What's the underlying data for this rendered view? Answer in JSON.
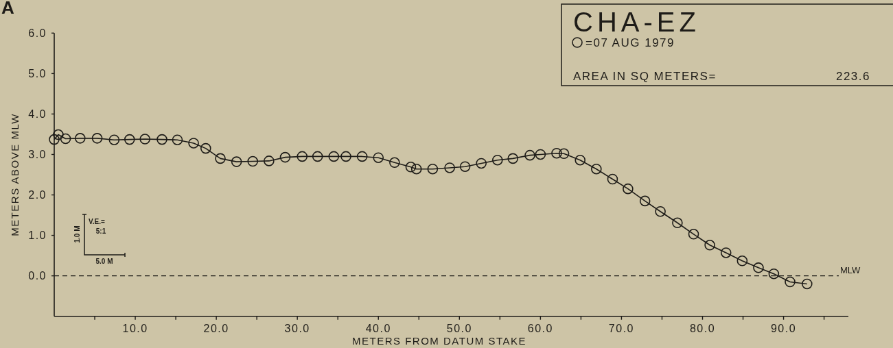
{
  "chart_data": {
    "type": "line",
    "title": "CHA-EZ",
    "xlabel": "METERS FROM DATUM STAKE",
    "ylabel": "METERS ABOVE MLW",
    "xlim": [
      0,
      98
    ],
    "ylim": [
      -1,
      6
    ],
    "xticks": [
      {
        "value": 5,
        "label": null
      },
      {
        "value": 10,
        "label": "10.0"
      },
      {
        "value": 15,
        "label": null
      },
      {
        "value": 20,
        "label": "20.0"
      },
      {
        "value": 25,
        "label": null
      },
      {
        "value": 30,
        "label": "30.0"
      },
      {
        "value": 35,
        "label": null
      },
      {
        "value": 40,
        "label": "40.0"
      },
      {
        "value": 45,
        "label": null
      },
      {
        "value": 50,
        "label": "50.0"
      },
      {
        "value": 55,
        "label": null
      },
      {
        "value": 60,
        "label": "60.0"
      },
      {
        "value": 65,
        "label": null
      },
      {
        "value": 70,
        "label": "70.0"
      },
      {
        "value": 75,
        "label": null
      },
      {
        "value": 80,
        "label": "80.0"
      },
      {
        "value": 85,
        "label": null
      },
      {
        "value": 90,
        "label": "90.0"
      },
      {
        "value": 95,
        "label": null
      }
    ],
    "yticks": [
      {
        "value": 0,
        "label": "0.0"
      },
      {
        "value": 1,
        "label": "1.0"
      },
      {
        "value": 2,
        "label": "2.0"
      },
      {
        "value": 3,
        "label": "3.0"
      },
      {
        "value": 4,
        "label": "4.0"
      },
      {
        "value": 5,
        "label": "5.0"
      },
      {
        "value": 6,
        "label": "6.0"
      }
    ],
    "grid": false,
    "legend": "top right",
    "marker": "circle",
    "line_style": "solid",
    "series": [
      {
        "name": "=07 AUG 1979",
        "color": "#1e1c18",
        "x": [
          0,
          0.5,
          1.4,
          3.2,
          5.3,
          7.4,
          9.3,
          11.2,
          13.3,
          15.2,
          17.2,
          18.7,
          20.5,
          22.5,
          24.5,
          26.5,
          28.5,
          30.6,
          32.5,
          34.5,
          36.0,
          38.0,
          40.0,
          42.0,
          44.0,
          44.7,
          46.7,
          48.8,
          50.7,
          52.7,
          54.7,
          56.6,
          58.7,
          60.0,
          62.0,
          62.9,
          64.9,
          66.9,
          68.9,
          70.8,
          72.9,
          74.8,
          76.9,
          78.9,
          80.9,
          82.9,
          84.9,
          86.9,
          88.8,
          90.8,
          92.9
        ],
        "values": [
          3.37,
          3.49,
          3.39,
          3.4,
          3.4,
          3.36,
          3.37,
          3.38,
          3.37,
          3.36,
          3.28,
          3.15,
          2.9,
          2.82,
          2.83,
          2.84,
          2.93,
          2.95,
          2.95,
          2.95,
          2.95,
          2.95,
          2.92,
          2.8,
          2.69,
          2.64,
          2.64,
          2.67,
          2.7,
          2.78,
          2.86,
          2.9,
          2.98,
          3.0,
          3.03,
          3.02,
          2.86,
          2.64,
          2.39,
          2.15,
          1.85,
          1.59,
          1.31,
          1.03,
          0.76,
          0.57,
          0.37,
          0.2,
          0.05,
          -0.15,
          -0.2
        ]
      }
    ],
    "ref_lines": [
      {
        "axis": "y",
        "value": 0,
        "label": "MLW",
        "line_style": "dashed",
        "color": "#1e1c18"
      }
    ],
    "annotations": [
      "A",
      "AREA IN SQ METERS=",
      "223.6",
      "V.E.=",
      "5:1",
      "1.0 M",
      "5.0 M"
    ]
  }
}
